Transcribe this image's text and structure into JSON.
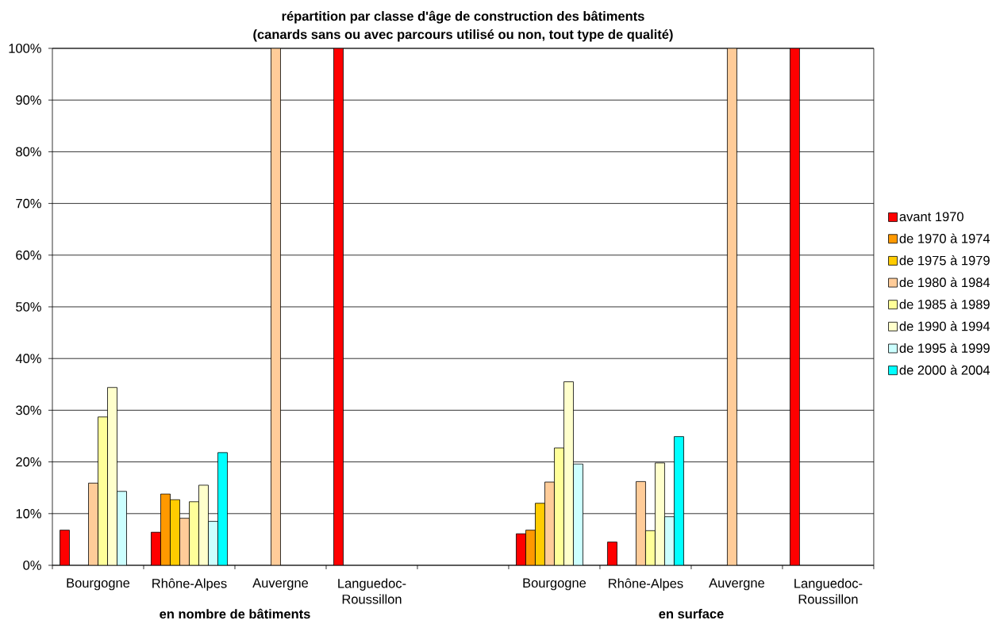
{
  "chart_data": {
    "type": "bar",
    "title": "répartition par classe d'âge de construction des bâtiments",
    "subtitle": "(canards sans ou avec parcours utilisé ou non, tout type de qualité)",
    "categories": [
      "Bourgogne",
      "Rhône-Alpes",
      "Auvergne",
      "Languedoc-Roussillon",
      null,
      "Bourgogne",
      "Rhône-Alpes",
      "Auvergne",
      "Languedoc-Roussillon"
    ],
    "series": [
      {
        "name": "avant 1970",
        "color": "#ff0000",
        "values": [
          6.8,
          6.4,
          null,
          100,
          null,
          6.1,
          4.5,
          null,
          100
        ]
      },
      {
        "name": "de 1970 à 1974",
        "color": "#ff9900",
        "values": [
          null,
          13.8,
          null,
          null,
          null,
          6.8,
          null,
          null,
          null
        ]
      },
      {
        "name": "de 1975 à 1979",
        "color": "#ffcc00",
        "values": [
          null,
          12.7,
          null,
          null,
          null,
          12.0,
          null,
          null,
          null
        ]
      },
      {
        "name": "de 1980 à 1984",
        "color": "#ffcc99",
        "values": [
          15.9,
          9.1,
          100,
          null,
          null,
          16.1,
          16.2,
          100,
          null
        ]
      },
      {
        "name": "de 1985 à 1989",
        "color": "#ffff99",
        "values": [
          28.7,
          12.3,
          null,
          null,
          null,
          22.7,
          6.7,
          null,
          null
        ]
      },
      {
        "name": "de 1990 à 1994",
        "color": "#ffffcc",
        "values": [
          34.4,
          15.5,
          null,
          null,
          null,
          35.5,
          19.8,
          null,
          null
        ]
      },
      {
        "name": "de 1995 à 1999",
        "color": "#ccffff",
        "values": [
          14.3,
          8.5,
          null,
          null,
          null,
          19.6,
          9.4,
          null,
          null
        ]
      },
      {
        "name": "de 2000 à 2004",
        "color": "#00ffff",
        "values": [
          null,
          21.8,
          null,
          null,
          null,
          null,
          24.9,
          null,
          null
        ]
      }
    ],
    "ylim": [
      0,
      100
    ],
    "yticks": [
      {
        "value": 0,
        "label": "0%"
      },
      {
        "value": 10,
        "label": "10%"
      },
      {
        "value": 20,
        "label": "20%"
      },
      {
        "value": 30,
        "label": "30%"
      },
      {
        "value": 40,
        "label": "40%"
      },
      {
        "value": 50,
        "label": "50%"
      },
      {
        "value": 60,
        "label": "60%"
      },
      {
        "value": 70,
        "label": "70%"
      },
      {
        "value": 80,
        "label": "80%"
      },
      {
        "value": 90,
        "label": "90%"
      },
      {
        "value": 100,
        "label": "100%"
      }
    ],
    "grid": "y",
    "legend": "right",
    "annotations": [
      "en nombre de bâtiments",
      "en surface"
    ]
  }
}
